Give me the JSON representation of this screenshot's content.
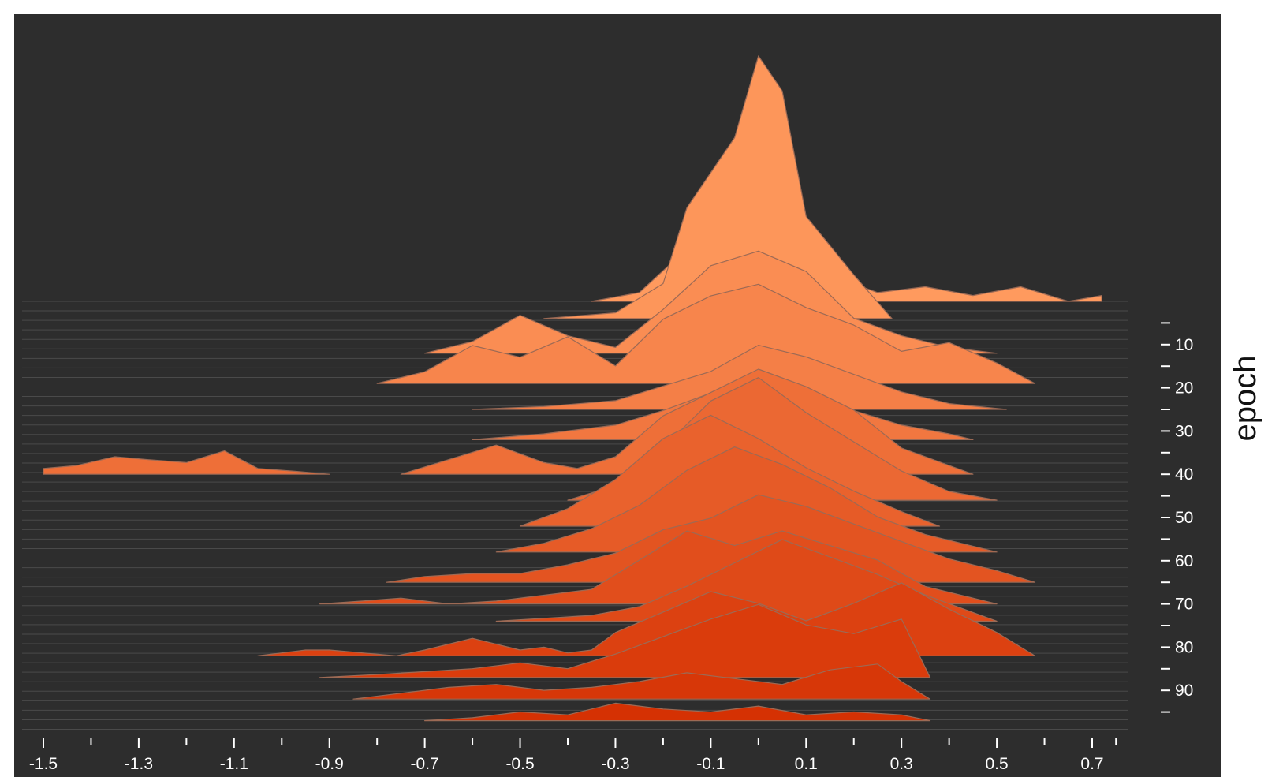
{
  "chart_data": {
    "type": "area",
    "style": "ridgeline histogram (TensorBoard offset view)",
    "xlabel": "",
    "ylabel": "epoch",
    "xlim": [
      -1.5,
      0.7
    ],
    "x_ticks": [
      -1.5,
      -1.3,
      -1.1,
      -0.9,
      -0.7,
      -0.5,
      -0.3,
      -0.1,
      0.1,
      0.3,
      0.5,
      0.7
    ],
    "x_tick_labels": [
      "-1.5",
      "-1.3",
      "-1.1",
      "-0.9",
      "-0.7",
      "-0.5",
      "-0.3",
      "-0.1",
      "0.1",
      "0.3",
      "0.5",
      "0.7"
    ],
    "epoch_ticks": [
      10,
      20,
      30,
      40,
      50,
      60,
      70,
      80,
      90
    ],
    "epoch_tick_labels": [
      "10",
      "20",
      "30",
      "40",
      "50",
      "60",
      "70",
      "80",
      "90"
    ],
    "epoch_range": [
      0,
      100
    ],
    "background_color": "#2d2d2d",
    "color_oldest": "#ff9a5e",
    "color_newest": "#d42e00",
    "outline_color": "#9c6a55",
    "series": [
      {
        "epoch": 0,
        "x": [
          -0.35,
          -0.25,
          -0.15,
          -0.05,
          0.0,
          0.05,
          0.15,
          0.25,
          0.35,
          0.45,
          0.55,
          0.65,
          0.72
        ],
        "density": [
          0.0,
          0.03,
          0.18,
          0.26,
          0.27,
          0.24,
          0.09,
          0.03,
          0.05,
          0.02,
          0.05,
          0.0,
          0.02
        ]
      },
      {
        "epoch": 4,
        "x": [
          -0.45,
          -0.3,
          -0.2,
          -0.15,
          -0.05,
          0.0,
          0.05,
          0.1,
          0.2,
          0.28
        ],
        "density": [
          0.0,
          0.02,
          0.12,
          0.38,
          0.62,
          0.9,
          0.78,
          0.35,
          0.15,
          0.0
        ]
      },
      {
        "epoch": 12,
        "x": [
          -0.7,
          -0.6,
          -0.5,
          -0.4,
          -0.3,
          -0.2,
          -0.1,
          0.0,
          0.1,
          0.2,
          0.3,
          0.4,
          0.5
        ],
        "density": [
          0.0,
          0.04,
          0.13,
          0.06,
          0.02,
          0.15,
          0.3,
          0.35,
          0.28,
          0.12,
          0.06,
          0.02,
          0.0
        ]
      },
      {
        "epoch": 19,
        "x": [
          -0.8,
          -0.7,
          -0.6,
          -0.5,
          -0.4,
          -0.3,
          -0.2,
          -0.1,
          0.0,
          0.1,
          0.2,
          0.3,
          0.4,
          0.5,
          0.58
        ],
        "density": [
          0.0,
          0.04,
          0.13,
          0.09,
          0.16,
          0.06,
          0.22,
          0.3,
          0.34,
          0.26,
          0.2,
          0.11,
          0.14,
          0.07,
          0.0
        ]
      },
      {
        "epoch": 25,
        "x": [
          -0.6,
          -0.45,
          -0.3,
          -0.2,
          -0.1,
          0.0,
          0.1,
          0.2,
          0.3,
          0.4,
          0.52
        ],
        "density": [
          0.0,
          0.01,
          0.03,
          0.08,
          0.13,
          0.22,
          0.18,
          0.12,
          0.06,
          0.02,
          0.0
        ]
      },
      {
        "epoch": 32,
        "x": [
          -0.6,
          -0.45,
          -0.3,
          -0.2,
          -0.1,
          0.0,
          0.1,
          0.2,
          0.3,
          0.4,
          0.45
        ],
        "density": [
          0.0,
          0.02,
          0.05,
          0.1,
          0.16,
          0.22,
          0.17,
          0.1,
          0.05,
          0.02,
          0.0
        ]
      },
      {
        "epoch": 40,
        "x": [
          -1.5,
          -1.43,
          -1.35,
          -1.28,
          -1.2,
          -1.12,
          -1.05,
          -0.97,
          -0.9
        ],
        "density": [
          0.02,
          0.03,
          0.06,
          0.05,
          0.04,
          0.08,
          0.02,
          0.01,
          0.0
        ]
      },
      {
        "epoch": 40,
        "x": [
          -0.75,
          -0.65,
          -0.55,
          -0.45,
          -0.38,
          -0.3,
          -0.2,
          -0.1,
          0.0,
          0.1,
          0.2,
          0.3,
          0.4,
          0.45
        ],
        "density": [
          0.0,
          0.05,
          0.1,
          0.04,
          0.02,
          0.06,
          0.2,
          0.28,
          0.36,
          0.3,
          0.22,
          0.09,
          0.03,
          0.0
        ]
      },
      {
        "epoch": 46,
        "x": [
          -0.4,
          -0.3,
          -0.2,
          -0.1,
          0.0,
          0.1,
          0.2,
          0.3,
          0.4,
          0.5
        ],
        "density": [
          0.0,
          0.05,
          0.18,
          0.34,
          0.42,
          0.3,
          0.2,
          0.1,
          0.03,
          0.0
        ]
      },
      {
        "epoch": 52,
        "x": [
          -0.5,
          -0.4,
          -0.3,
          -0.2,
          -0.1,
          0.0,
          0.1,
          0.2,
          0.3,
          0.38
        ],
        "density": [
          0.0,
          0.06,
          0.16,
          0.3,
          0.38,
          0.3,
          0.2,
          0.12,
          0.05,
          0.0
        ]
      },
      {
        "epoch": 58,
        "x": [
          -0.55,
          -0.45,
          -0.35,
          -0.25,
          -0.15,
          -0.05,
          0.05,
          0.15,
          0.25,
          0.35,
          0.45,
          0.5
        ],
        "density": [
          0.0,
          0.03,
          0.08,
          0.16,
          0.28,
          0.36,
          0.3,
          0.22,
          0.12,
          0.06,
          0.02,
          0.0
        ]
      },
      {
        "epoch": 65,
        "x": [
          -0.78,
          -0.7,
          -0.6,
          -0.5,
          -0.4,
          -0.3,
          -0.2,
          -0.1,
          0.0,
          0.1,
          0.2,
          0.3,
          0.4,
          0.5,
          0.58
        ],
        "density": [
          0.0,
          0.02,
          0.03,
          0.03,
          0.06,
          0.1,
          0.18,
          0.22,
          0.3,
          0.26,
          0.2,
          0.14,
          0.08,
          0.04,
          0.0
        ]
      },
      {
        "epoch": 70,
        "x": [
          -0.92,
          -0.83,
          -0.75,
          -0.65,
          -0.55,
          -0.45,
          -0.35,
          -0.25,
          -0.15,
          -0.05,
          0.05,
          0.15,
          0.25,
          0.35,
          0.45,
          0.5
        ],
        "density": [
          0.0,
          0.01,
          0.02,
          0.0,
          0.01,
          0.03,
          0.05,
          0.15,
          0.25,
          0.2,
          0.25,
          0.2,
          0.15,
          0.06,
          0.02,
          0.0
        ]
      },
      {
        "epoch": 74,
        "x": [
          -0.55,
          -0.45,
          -0.35,
          -0.25,
          -0.15,
          -0.05,
          0.05,
          0.15,
          0.25,
          0.35,
          0.45,
          0.5
        ],
        "density": [
          0.0,
          0.01,
          0.02,
          0.05,
          0.12,
          0.2,
          0.28,
          0.22,
          0.16,
          0.09,
          0.03,
          0.0
        ]
      },
      {
        "epoch": 82,
        "x": [
          -1.05,
          -0.95,
          -0.9,
          -0.83,
          -0.76,
          -0.7,
          -0.6,
          -0.5,
          -0.45,
          -0.4,
          -0.35,
          -0.3,
          -0.2,
          -0.1,
          0.0,
          0.1,
          0.2,
          0.3,
          0.4,
          0.5,
          0.58
        ],
        "density": [
          0.0,
          0.02,
          0.02,
          0.01,
          0.0,
          0.02,
          0.06,
          0.02,
          0.03,
          0.01,
          0.02,
          0.08,
          0.15,
          0.22,
          0.18,
          0.12,
          0.18,
          0.25,
          0.16,
          0.08,
          0.0
        ]
      },
      {
        "epoch": 87,
        "x": [
          -0.92,
          -0.8,
          -0.7,
          -0.6,
          -0.5,
          -0.4,
          -0.3,
          -0.2,
          -0.1,
          0.0,
          0.1,
          0.2,
          0.3,
          0.36
        ],
        "density": [
          0.0,
          0.01,
          0.02,
          0.03,
          0.05,
          0.03,
          0.08,
          0.14,
          0.2,
          0.25,
          0.18,
          0.15,
          0.2,
          0.0
        ]
      },
      {
        "epoch": 92,
        "x": [
          -0.85,
          -0.75,
          -0.65,
          -0.55,
          -0.45,
          -0.35,
          -0.25,
          -0.15,
          -0.05,
          0.05,
          0.15,
          0.25,
          0.3,
          0.36
        ],
        "density": [
          0.0,
          0.02,
          0.04,
          0.05,
          0.03,
          0.04,
          0.06,
          0.09,
          0.07,
          0.05,
          0.1,
          0.12,
          0.06,
          0.0
        ]
      },
      {
        "epoch": 97,
        "x": [
          -0.7,
          -0.6,
          -0.5,
          -0.4,
          -0.3,
          -0.2,
          -0.1,
          0.0,
          0.1,
          0.2,
          0.3,
          0.36
        ],
        "density": [
          0.0,
          0.01,
          0.03,
          0.02,
          0.06,
          0.04,
          0.03,
          0.05,
          0.02,
          0.03,
          0.02,
          0.0
        ]
      }
    ]
  }
}
